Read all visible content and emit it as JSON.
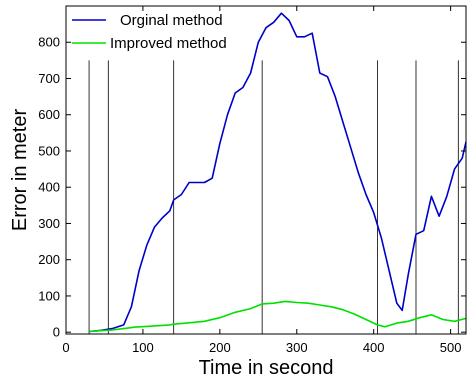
{
  "chart_data": {
    "type": "line",
    "title": "",
    "xlabel": "Time in second",
    "ylabel": "Error in meter",
    "xlim": [
      0,
      520
    ],
    "ylim": [
      -5,
      900
    ],
    "xticks": [
      0,
      100,
      200,
      300,
      400,
      500
    ],
    "yticks": [
      0,
      100,
      200,
      300,
      400,
      500,
      600,
      700,
      800
    ],
    "grid": false,
    "legend_position": "top-left",
    "vertical_markers": {
      "x": [
        30,
        55,
        140,
        255,
        405,
        455,
        510
      ],
      "ytop": 750,
      "color": "#000000"
    },
    "series": [
      {
        "name": "Orginal method",
        "color": "#0000cc",
        "x": [
          30,
          45,
          60,
          75,
          85,
          95,
          105,
          115,
          125,
          135,
          140,
          150,
          160,
          170,
          180,
          190,
          200,
          210,
          220,
          230,
          240,
          250,
          260,
          270,
          280,
          290,
          300,
          310,
          320,
          330,
          340,
          350,
          360,
          370,
          380,
          390,
          400,
          410,
          420,
          430,
          437,
          445,
          455,
          465,
          475,
          485,
          495,
          505,
          515,
          520
        ],
        "y": [
          2,
          5,
          10,
          20,
          70,
          170,
          240,
          290,
          315,
          335,
          365,
          380,
          413,
          413,
          413,
          425,
          520,
          600,
          660,
          675,
          715,
          800,
          840,
          855,
          880,
          860,
          815,
          815,
          825,
          715,
          705,
          650,
          580,
          510,
          440,
          380,
          330,
          260,
          170,
          80,
          60,
          160,
          270,
          280,
          375,
          320,
          375,
          450,
          480,
          525
        ]
      },
      {
        "name": "Improved method",
        "color": "#00e000",
        "x": [
          30,
          45,
          60,
          75,
          90,
          105,
          120,
          135,
          140,
          160,
          180,
          200,
          220,
          240,
          255,
          270,
          285,
          300,
          315,
          330,
          345,
          360,
          375,
          390,
          405,
          415,
          430,
          445,
          460,
          475,
          490,
          505,
          520
        ],
        "y": [
          2,
          4,
          6,
          10,
          14,
          16,
          18,
          20,
          22,
          26,
          30,
          40,
          55,
          65,
          78,
          80,
          85,
          82,
          80,
          75,
          70,
          62,
          50,
          35,
          20,
          15,
          25,
          30,
          40,
          48,
          35,
          30,
          38
        ]
      }
    ]
  }
}
